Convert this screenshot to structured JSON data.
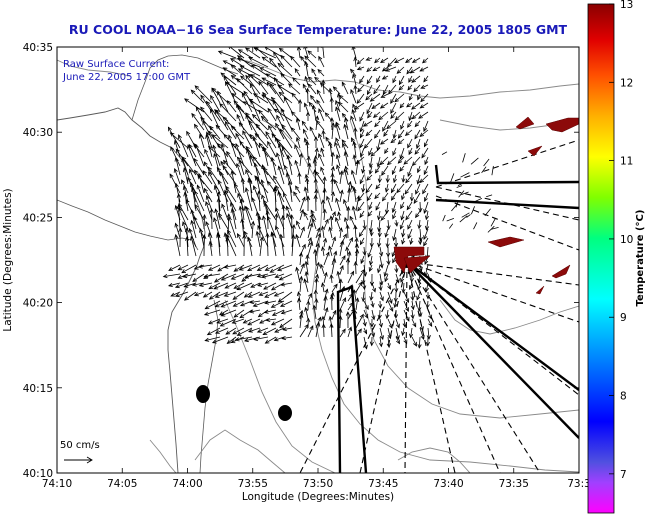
{
  "chart_data": {
    "type": "map",
    "title": "RU COOL  NOAA−16  Sea Surface Temperature:  June 22, 2005 1805 GMT",
    "subtitle_lines": [
      "Raw Surface Current:",
      "June 22, 2005 17:00 GMT"
    ],
    "xlabel": "Longitude (Degrees:Minutes)",
    "ylabel": "Latitude (Degrees:Minutes)",
    "x_ticks": [
      "74:10",
      "74:05",
      "74:00",
      "73:55",
      "73:50",
      "73:45",
      "73:40",
      "73:35",
      "73:3"
    ],
    "y_ticks": [
      "40:35",
      "40:30",
      "40:25",
      "40:20",
      "40:15",
      "40:10"
    ],
    "xlim_min_west": [
      -74.1667,
      -73.5
    ],
    "ylim_deg": [
      40.1667,
      40.5833
    ],
    "colorbar": {
      "label": "Temperature (°C)",
      "ticks": [
        "13",
        "12",
        "11",
        "10",
        "9",
        "8",
        "7"
      ],
      "range": [
        6.5,
        13
      ]
    },
    "scale_label": "50 cm/s",
    "sst_patches_celsius": [
      {
        "name": "offshore-patch-1",
        "value": 13
      },
      {
        "name": "offshore-patch-2",
        "value": 13
      },
      {
        "name": "offshore-patch-3",
        "value": 13
      },
      {
        "name": "offshore-patch-4",
        "value": 13
      },
      {
        "name": "offshore-patch-5",
        "value": 13
      },
      {
        "name": "offshore-patch-6",
        "value": 13
      },
      {
        "name": "offshore-patch-7",
        "value": 13
      }
    ]
  }
}
